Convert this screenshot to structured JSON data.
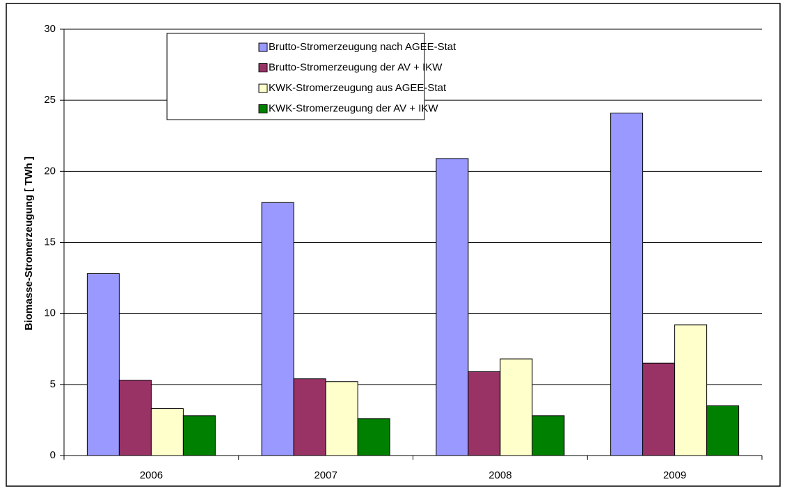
{
  "chart_data": {
    "type": "bar",
    "y_label": "Biomasse-Stromerzeugung [ TWh ]",
    "categories": [
      "2006",
      "2007",
      "2008",
      "2009"
    ],
    "series": [
      {
        "name": "Brutto-Stromerzeugung nach AGEE-Stat",
        "color": "#9999ff",
        "values": [
          12.8,
          17.8,
          20.9,
          24.1
        ]
      },
      {
        "name": "Brutto-Stromerzeugung der AV + IKW",
        "color": "#993366",
        "values": [
          5.3,
          5.4,
          5.9,
          6.5
        ]
      },
      {
        "name": "KWK-Stromerzeugung aus AGEE-Stat",
        "color": "#ffffcc",
        "values": [
          3.3,
          5.2,
          6.8,
          9.2
        ]
      },
      {
        "name": "KWK-Stromerzeugung der AV + IKW",
        "color": "#008000",
        "values": [
          2.8,
          2.6,
          2.8,
          3.5
        ]
      }
    ],
    "ylim": [
      0,
      30
    ],
    "yticks": [
      0,
      5,
      10,
      15,
      20,
      25,
      30
    ],
    "grid": true,
    "legend": "top"
  }
}
